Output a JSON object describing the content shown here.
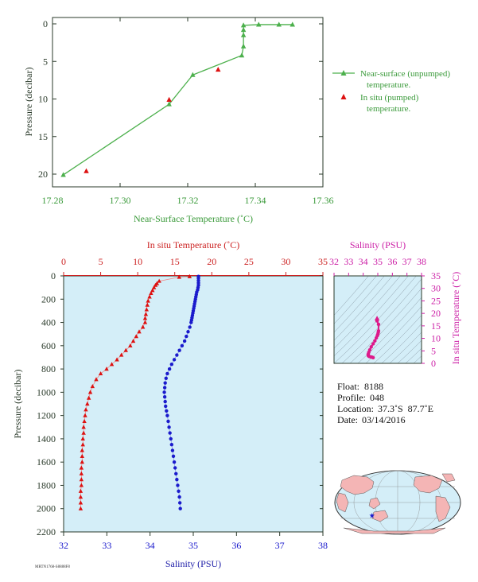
{
  "chart_data": [
    {
      "type": "line",
      "xlabel": "Near-Surface Temperature (˚C)",
      "ylabel": "Pressure (decibar)",
      "xlim": [
        17.28,
        17.36
      ],
      "ylim": [
        0,
        22
      ],
      "x_ticks": [
        "17.28",
        "17.30",
        "17.32",
        "17.34",
        "17.36"
      ],
      "y_ticks": [
        "0",
        "5",
        "10",
        "15",
        "20"
      ],
      "legend": {
        "placement": "right",
        "entries": [
          "Near-surface (unpumped) temperature.",
          "In situ (pumped) temperature."
        ]
      },
      "series": [
        {
          "name": "Near-surface (unpumped) temperature.",
          "marker": "triangle",
          "color": "#4cb04c",
          "points": [
            [
              17.351,
              0.1
            ],
            [
              17.347,
              0.1
            ],
            [
              17.341,
              0.1
            ],
            [
              17.3365,
              0.2
            ],
            [
              17.3365,
              0.8
            ],
            [
              17.3365,
              1.5
            ],
            [
              17.3365,
              3.0
            ],
            [
              17.336,
              4.2
            ],
            [
              17.3215,
              6.8
            ],
            [
              17.3145,
              10.7
            ],
            [
              17.2832,
              20.1
            ]
          ]
        },
        {
          "name": "In situ (pumped) temperature.",
          "marker": "triangle",
          "color": "#dd1111",
          "points": [
            [
              17.3145,
              10.1
            ],
            [
              17.329,
              6.1
            ],
            [
              17.29,
              19.6
            ]
          ]
        }
      ]
    },
    {
      "type": "scatter",
      "title_x_top": "In situ Temperature (˚C)",
      "xlabel": "Salinity (PSU)",
      "ylabel": "Pressure (decibar)",
      "xlim_temperature": [
        0,
        35
      ],
      "xlim_salinity": [
        32,
        38
      ],
      "ylim": [
        0,
        2200
      ],
      "temperature_ticks": [
        "0",
        "5",
        "10",
        "15",
        "20",
        "25",
        "30",
        "35"
      ],
      "salinity_ticks": [
        "32",
        "33",
        "34",
        "35",
        "36",
        "37",
        "38"
      ],
      "y_ticks": [
        "0",
        "200",
        "400",
        "600",
        "800",
        "1000",
        "1200",
        "1400",
        "1600",
        "1800",
        "2000",
        "2200"
      ],
      "temperature_color": "#dd1111",
      "salinity_color": "#1a1acc",
      "background": "#d4eef8",
      "temperature_profile": [
        [
          17.0,
          5
        ],
        [
          15.6,
          10
        ],
        [
          12.9,
          45
        ],
        [
          12.6,
          65
        ],
        [
          12.4,
          80
        ],
        [
          12.2,
          100
        ],
        [
          12.0,
          125
        ],
        [
          11.8,
          150
        ],
        [
          11.6,
          180
        ],
        [
          11.4,
          215
        ],
        [
          11.3,
          250
        ],
        [
          11.2,
          290
        ],
        [
          11.1,
          330
        ],
        [
          11.0,
          365
        ],
        [
          11.0,
          400
        ],
        [
          10.7,
          440
        ],
        [
          10.2,
          480
        ],
        [
          9.8,
          520
        ],
        [
          9.4,
          560
        ],
        [
          9.0,
          600
        ],
        [
          8.4,
          640
        ],
        [
          7.8,
          680
        ],
        [
          7.2,
          720
        ],
        [
          6.5,
          760
        ],
        [
          5.8,
          800
        ],
        [
          5.0,
          840
        ],
        [
          4.4,
          890
        ],
        [
          3.9,
          950
        ],
        [
          3.6,
          1000
        ],
        [
          3.4,
          1050
        ],
        [
          3.2,
          1100
        ],
        [
          3.0,
          1150
        ],
        [
          2.9,
          1200
        ],
        [
          2.8,
          1250
        ],
        [
          2.7,
          1300
        ],
        [
          2.7,
          1350
        ],
        [
          2.6,
          1400
        ],
        [
          2.6,
          1450
        ],
        [
          2.5,
          1500
        ],
        [
          2.5,
          1550
        ],
        [
          2.5,
          1600
        ],
        [
          2.4,
          1650
        ],
        [
          2.4,
          1700
        ],
        [
          2.4,
          1750
        ],
        [
          2.4,
          1800
        ],
        [
          2.3,
          1850
        ],
        [
          2.3,
          1900
        ],
        [
          2.3,
          1950
        ],
        [
          2.3,
          2000
        ]
      ],
      "salinity_profile": [
        [
          35.12,
          5
        ],
        [
          35.12,
          20
        ],
        [
          35.12,
          40
        ],
        [
          35.12,
          60
        ],
        [
          35.12,
          80
        ],
        [
          35.11,
          100
        ],
        [
          35.1,
          120
        ],
        [
          35.08,
          140
        ],
        [
          35.07,
          160
        ],
        [
          35.06,
          180
        ],
        [
          35.05,
          200
        ],
        [
          35.04,
          220
        ],
        [
          35.03,
          240
        ],
        [
          35.02,
          260
        ],
        [
          35.01,
          280
        ],
        [
          35.0,
          300
        ],
        [
          34.99,
          320
        ],
        [
          34.98,
          340
        ],
        [
          34.97,
          360
        ],
        [
          34.96,
          380
        ],
        [
          34.95,
          400
        ],
        [
          34.92,
          440
        ],
        [
          34.88,
          480
        ],
        [
          34.84,
          520
        ],
        [
          34.8,
          560
        ],
        [
          34.74,
          600
        ],
        [
          34.68,
          640
        ],
        [
          34.62,
          680
        ],
        [
          34.56,
          720
        ],
        [
          34.5,
          760
        ],
        [
          34.45,
          800
        ],
        [
          34.4,
          840
        ],
        [
          34.37,
          880
        ],
        [
          34.35,
          920
        ],
        [
          34.34,
          960
        ],
        [
          34.33,
          1000
        ],
        [
          34.34,
          1040
        ],
        [
          34.35,
          1080
        ],
        [
          34.36,
          1120
        ],
        [
          34.38,
          1160
        ],
        [
          34.4,
          1200
        ],
        [
          34.42,
          1250
        ],
        [
          34.44,
          1300
        ],
        [
          34.46,
          1350
        ],
        [
          34.48,
          1400
        ],
        [
          34.5,
          1450
        ],
        [
          34.52,
          1500
        ],
        [
          34.54,
          1550
        ],
        [
          34.56,
          1600
        ],
        [
          34.58,
          1650
        ],
        [
          34.6,
          1700
        ],
        [
          34.62,
          1750
        ],
        [
          34.64,
          1800
        ],
        [
          34.66,
          1850
        ],
        [
          34.68,
          1900
        ],
        [
          34.69,
          1950
        ],
        [
          34.7,
          2000
        ]
      ]
    },
    {
      "type": "scatter",
      "title": "Salinity (PSU)",
      "ylabel": "In situ Temperature (˚C)",
      "xlim": [
        32,
        38
      ],
      "ylim": [
        0,
        35
      ],
      "x_ticks": [
        "32",
        "33",
        "34",
        "35",
        "36",
        "37",
        "38"
      ],
      "y_ticks": [
        "0",
        "5",
        "10",
        "15",
        "20",
        "25",
        "30",
        "35"
      ],
      "color": "#dd1a8a",
      "background": "#d4eef8",
      "points": [
        [
          34.95,
          17.0
        ],
        [
          35.05,
          15.6
        ],
        [
          35.05,
          13.0
        ],
        [
          35.03,
          12.3
        ],
        [
          35.0,
          11.6
        ],
        [
          34.97,
          11.1
        ],
        [
          34.9,
          10.2
        ],
        [
          34.8,
          9.0
        ],
        [
          34.68,
          7.8
        ],
        [
          34.55,
          6.6
        ],
        [
          34.45,
          5.4
        ],
        [
          34.38,
          4.4
        ],
        [
          34.34,
          3.6
        ],
        [
          34.35,
          3.1
        ],
        [
          34.4,
          2.8
        ],
        [
          34.5,
          2.6
        ],
        [
          34.6,
          2.5
        ],
        [
          34.68,
          2.3
        ]
      ]
    }
  ],
  "info": {
    "float_label": "Float:",
    "float_value": "8188",
    "profile_label": "Profile:",
    "profile_value": "048",
    "location_label": "Location:",
    "location_lat": "37.3˚S",
    "location_lon": "87.7˚E",
    "date_label": "Date:",
    "date_value": "03/14/2016"
  },
  "map": {
    "ocean_color": "#d4eef8",
    "land_color": "#f4b5b5",
    "marker_color": "#1a1acc",
    "marker_lon": 87.7,
    "marker_lat": -37.3
  },
  "footer_code": "MRTN1768-S8888F8"
}
